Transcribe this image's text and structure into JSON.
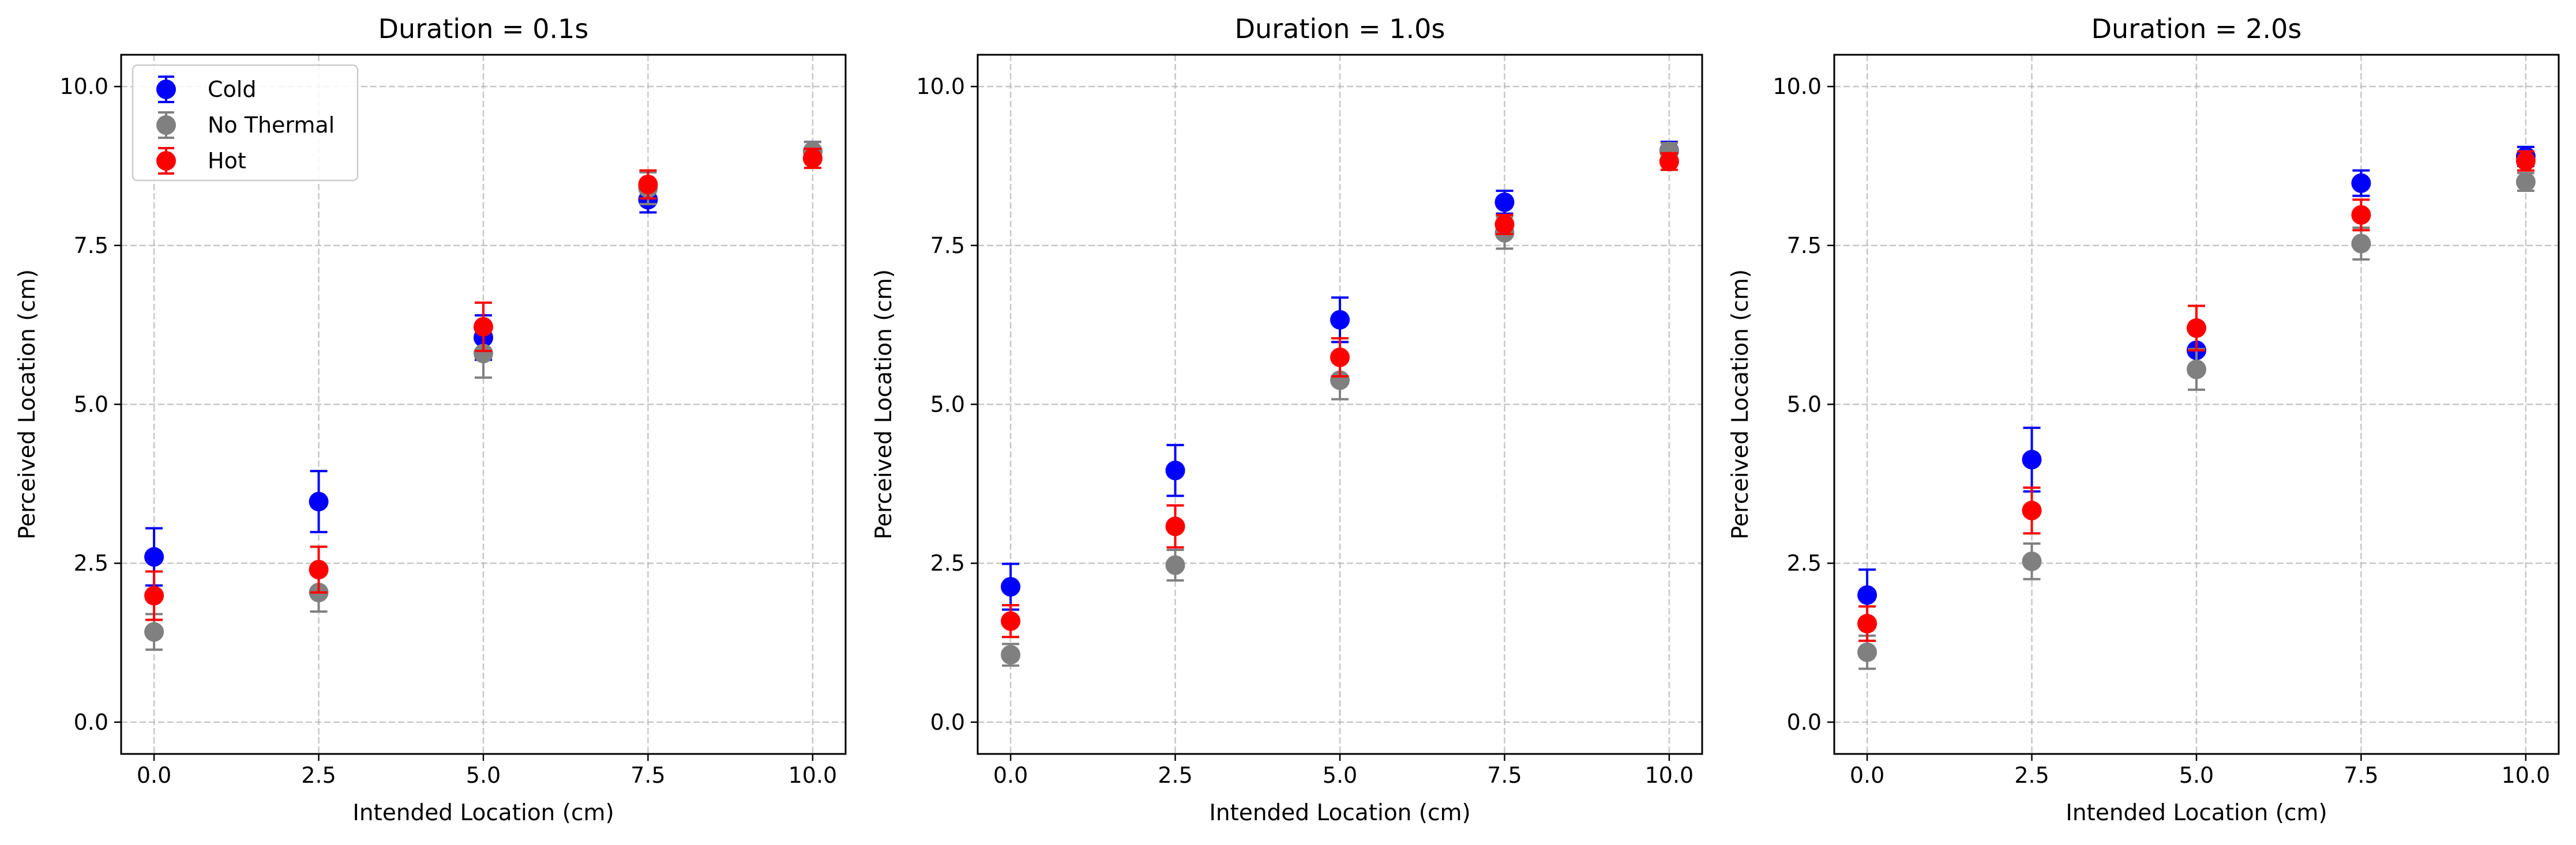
{
  "chart_data": [
    {
      "type": "scatter",
      "title": "Duration = 0.1s",
      "xlabel": "Intended Location (cm)",
      "ylabel": "Perceived Location (cm)",
      "xlim": [
        -0.5,
        10.5
      ],
      "ylim": [
        -0.5,
        10.5
      ],
      "x_ticks": [
        "0.0",
        "2.5",
        "5.0",
        "7.5",
        "10.0"
      ],
      "y_ticks": [
        "0.0",
        "2.5",
        "5.0",
        "7.5",
        "10.0"
      ],
      "grid": true,
      "legend": "upper-left",
      "series": [
        {
          "name": "Cold",
          "color": "#0000ff",
          "x": [
            0.0,
            2.5,
            5.0,
            7.5,
            10.0
          ],
          "y": [
            2.6,
            3.47,
            6.05,
            8.22,
            8.98
          ],
          "err": [
            0.45,
            0.48,
            0.35,
            0.2,
            0.15
          ]
        },
        {
          "name": "No Thermal",
          "color": "#808080",
          "x": [
            0.0,
            2.5,
            5.0,
            7.5,
            10.0
          ],
          "y": [
            1.42,
            2.04,
            5.8,
            8.4,
            8.98
          ],
          "err": [
            0.28,
            0.3,
            0.38,
            0.25,
            0.15
          ]
        },
        {
          "name": "Hot",
          "color": "#ff0000",
          "x": [
            0.0,
            2.5,
            5.0,
            7.5,
            10.0
          ],
          "y": [
            1.99,
            2.4,
            6.22,
            8.46,
            8.87
          ],
          "err": [
            0.38,
            0.36,
            0.38,
            0.22,
            0.15
          ]
        }
      ]
    },
    {
      "type": "scatter",
      "title": "Duration = 1.0s",
      "xlabel": "Intended Location (cm)",
      "ylabel": "Perceived Location (cm)",
      "xlim": [
        -0.5,
        10.5
      ],
      "ylim": [
        -0.5,
        10.5
      ],
      "x_ticks": [
        "0.0",
        "2.5",
        "5.0",
        "7.5",
        "10.0"
      ],
      "y_ticks": [
        "0.0",
        "2.5",
        "5.0",
        "7.5",
        "10.0"
      ],
      "grid": true,
      "series": [
        {
          "name": "Cold",
          "color": "#0000ff",
          "x": [
            0.0,
            2.5,
            5.0,
            7.5,
            10.0
          ],
          "y": [
            2.13,
            3.96,
            6.33,
            8.18,
            8.99
          ],
          "err": [
            0.36,
            0.4,
            0.35,
            0.18,
            0.14
          ]
        },
        {
          "name": "No Thermal",
          "color": "#808080",
          "x": [
            0.0,
            2.5,
            5.0,
            7.5,
            10.0
          ],
          "y": [
            1.06,
            2.47,
            5.38,
            7.7,
            8.98
          ],
          "err": [
            0.17,
            0.24,
            0.3,
            0.25,
            0.13
          ]
        },
        {
          "name": "Hot",
          "color": "#ff0000",
          "x": [
            0.0,
            2.5,
            5.0,
            7.5,
            10.0
          ],
          "y": [
            1.59,
            3.08,
            5.74,
            7.83,
            8.82
          ],
          "err": [
            0.25,
            0.33,
            0.3,
            0.15,
            0.13
          ]
        }
      ]
    },
    {
      "type": "scatter",
      "title": "Duration = 2.0s",
      "xlabel": "Intended Location (cm)",
      "ylabel": "Perceived Location (cm)",
      "xlim": [
        -0.5,
        10.5
      ],
      "ylim": [
        -0.5,
        10.5
      ],
      "x_ticks": [
        "0.0",
        "2.5",
        "5.0",
        "7.5",
        "10.0"
      ],
      "y_ticks": [
        "0.0",
        "2.5",
        "5.0",
        "7.5",
        "10.0"
      ],
      "grid": true,
      "series": [
        {
          "name": "Cold",
          "color": "#0000ff",
          "x": [
            0.0,
            2.5,
            5.0,
            7.5,
            10.0
          ],
          "y": [
            2.0,
            4.13,
            5.85,
            8.48,
            8.9
          ],
          "err": [
            0.4,
            0.5,
            0.3,
            0.2,
            0.15
          ]
        },
        {
          "name": "No Thermal",
          "color": "#808080",
          "x": [
            0.0,
            2.5,
            5.0,
            7.5,
            10.0
          ],
          "y": [
            1.1,
            2.53,
            5.55,
            7.53,
            8.5
          ],
          "err": [
            0.26,
            0.28,
            0.32,
            0.25,
            0.14
          ]
        },
        {
          "name": "Hot",
          "color": "#ff0000",
          "x": [
            0.0,
            2.5,
            5.0,
            7.5,
            10.0
          ],
          "y": [
            1.55,
            3.33,
            6.2,
            7.98,
            8.83
          ],
          "err": [
            0.27,
            0.36,
            0.35,
            0.24,
            0.15
          ]
        }
      ]
    }
  ]
}
